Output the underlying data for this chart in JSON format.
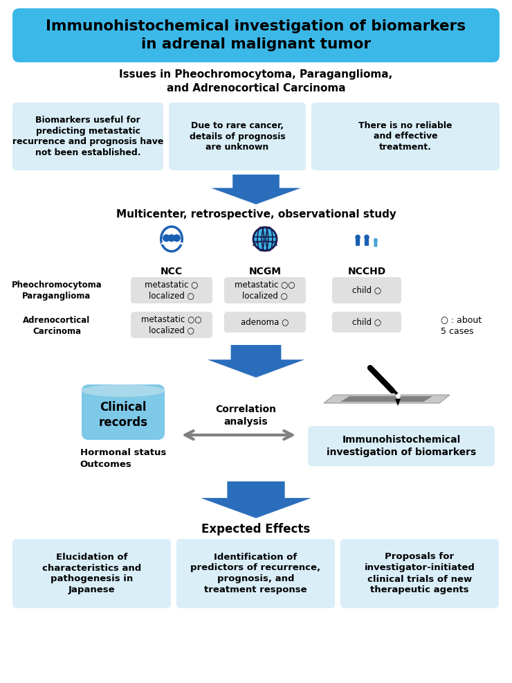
{
  "title": "Immunohistochemical investigation of biomarkers\nin adrenal malignant tumor",
  "title_bg": "#3BB8E8",
  "subtitle": "Issues in Pheochromocytoma, Paraganglioma,\nand Adrenocortical Carcinoma",
  "box1_text": "Biomarkers useful for\npredicting metastatic\nrecurrence and prognosis have\nnot been established.",
  "box2_text": "Due to rare cancer,\ndetails of prognosis\nare unknown",
  "box3_text": "There is no reliable\nand effective\ntreatment.",
  "multicenter_text": "Multicenter, retrospective, observational study",
  "ncc_label": "NCC",
  "ncgm_label": "NCGM",
  "ncchd_label": "NCCHD",
  "row1_label": "Pheochromocytoma\nParaganglioma",
  "row2_label": "Adrenocortical\nCarcinoma",
  "ncc_row1": "metastatic ○\nlocalized ○",
  "ncc_row2": "metastatic ○○\nlocalized ○",
  "ncgm_row1": "metastatic ○○\nlocalized ○",
  "ncgm_row2": "adenoma ○",
  "ncchd_row1": "child ○",
  "ncchd_row2": "child ○",
  "legend_text": "○ : about\n5 cases",
  "clinical_text": "Clinical\nrecords",
  "correlation_text": "Correlation\nanalysis",
  "immuno_text": "Immunohistochemical\ninvestigation of biomarkers",
  "hormonal_text": "Hormonal status\nOutcomes",
  "expected_title": "Expected Effects",
  "effect1": "Elucidation of\ncharacteristics and\npathogenesis in\nJapanese",
  "effect2": "Identification of\npredictors of recurrence,\nprognosis, and\ntreatment response",
  "effect3": "Proposals for\ninvestigator-initiated\nclinical trials of new\ntherapeutic agents",
  "light_blue_box": "#DAEEF8",
  "table_cell_bg": "#E0E0E0",
  "bg_color": "#FFFFFF",
  "arrow_blue": "#2A6EBB",
  "text_color": "#000000"
}
